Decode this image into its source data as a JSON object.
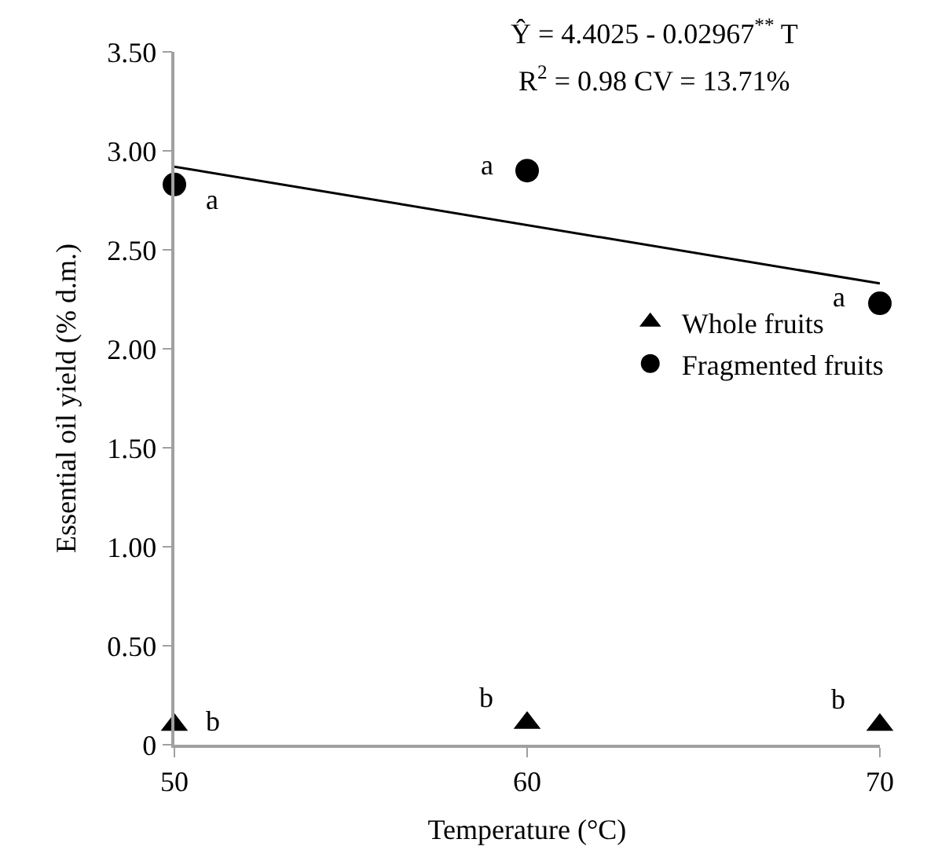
{
  "chart_data": {
    "type": "scatter",
    "xlabel": "Temperature (°C)",
    "ylabel": "Essential oil yield (% d.m.)",
    "x": [
      50,
      60,
      70
    ],
    "series": [
      {
        "name": "Whole fruits",
        "color": "#000000",
        "marker": "triangle",
        "values": [
          0.1,
          0.11,
          0.1
        ]
      },
      {
        "name": "Fragmented fruits",
        "color": "#000000",
        "marker": "circle",
        "values": [
          2.83,
          2.9,
          2.23
        ]
      },
      {
        "type": "line",
        "color": "#000000",
        "marker": "none",
        "line_style": "solid",
        "x": [
          50,
          70
        ],
        "values": [
          2.92,
          2.33
        ]
      }
    ],
    "xlim": [
      50,
      70
    ],
    "xticks": [
      50,
      60,
      70
    ],
    "ylim": [
      0,
      3.5
    ],
    "yticks": [
      0,
      {
        "value": 0.5,
        "label": "0.50"
      },
      {
        "value": 1,
        "label": "1.00"
      },
      {
        "value": 1.5,
        "label": "1.50"
      },
      {
        "value": 2,
        "label": "2.00"
      },
      {
        "value": 2.5,
        "label": "2.50"
      },
      {
        "value": 3,
        "label": "3.00"
      },
      {
        "value": 3.5,
        "label": "3.50"
      }
    ],
    "legend": "right",
    "annotations": [
      "Ŷ = 4.4025 - 0.02967$^{**}$ T",
      "R$^{2}$ = 0.98 CV = 13.71%",
      {
        "text": "a",
        "x": 50,
        "y": 2.83
      },
      {
        "text": "a",
        "x": 60,
        "y": 2.9
      },
      {
        "text": "a",
        "x": 70,
        "y": 2.23
      },
      {
        "text": "b",
        "x": 50,
        "y": 0.1
      },
      {
        "text": "b",
        "x": 60,
        "y": 0.11
      },
      {
        "text": "b",
        "x": 70,
        "y": 0.1
      }
    ]
  }
}
